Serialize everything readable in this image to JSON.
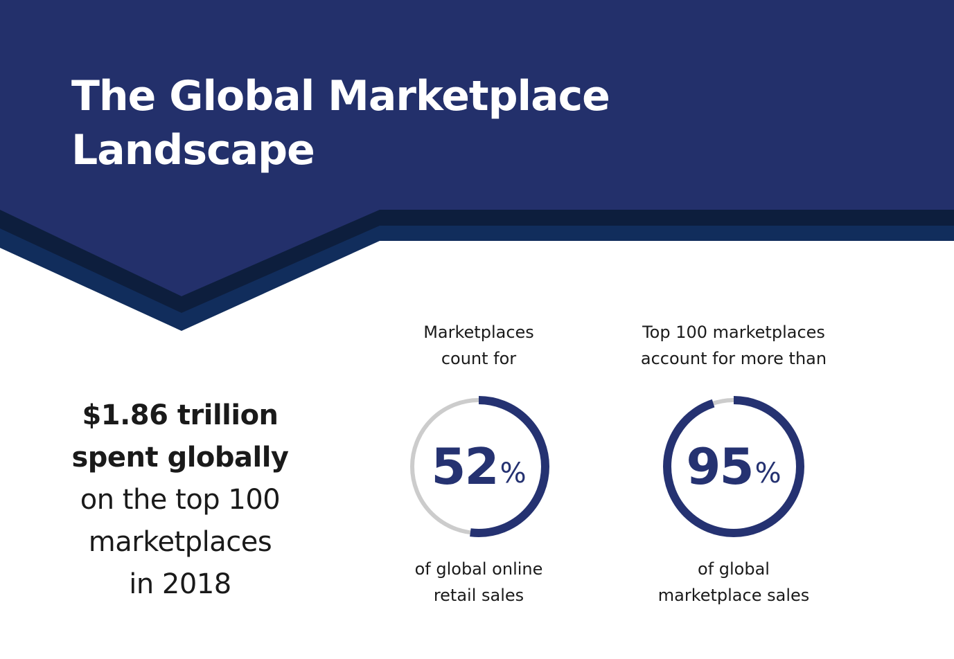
{
  "title": {
    "line1": "The Global Marketplace",
    "line2": "Landscape"
  },
  "headline": {
    "bold_line1": "$1.86 trillion",
    "bold_line2": "spent globally",
    "line3": "on the top 100",
    "line4": "marketplaces",
    "line5": "in 2018"
  },
  "stats": [
    {
      "top_line1": "Marketplaces",
      "top_line2": "count for",
      "value": "52",
      "percent_sign": "%",
      "fraction": 0.52,
      "bottom_line1": "of global online",
      "bottom_line2": "retail sales"
    },
    {
      "top_line1": "Top 100 marketplaces",
      "top_line2": "account for more than",
      "value": "95",
      "percent_sign": "%",
      "fraction": 0.95,
      "bottom_line1": "of global",
      "bottom_line2": "marketplace sales"
    }
  ],
  "colors": {
    "banner": "#23306b",
    "banner_shadow_dark": "#0d1e3d",
    "banner_shadow_mid": "#112d5c",
    "accent": "#253271",
    "ring_track": "#cccccc",
    "text": "#1a1a1a",
    "background": "#ffffff"
  }
}
